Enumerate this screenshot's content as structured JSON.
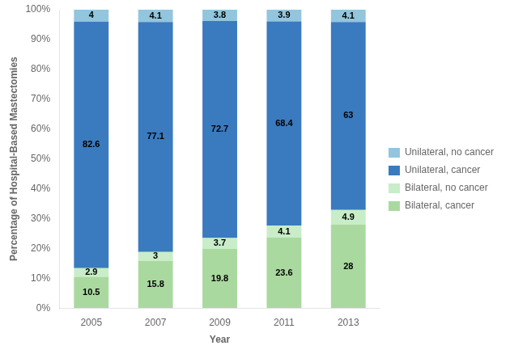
{
  "chart_data": {
    "type": "bar",
    "stacked": true,
    "xlabel": "Year",
    "ylabel": "Percentage of Hospital-Based Mastectomies",
    "categories": [
      "2005",
      "2007",
      "2009",
      "2011",
      "2013"
    ],
    "series": [
      {
        "name": "Bilateral, cancer",
        "color": "#aad9a0",
        "values": [
          10.5,
          15.8,
          19.8,
          23.6,
          28.0
        ]
      },
      {
        "name": "Bilateral, no cancer",
        "color": "#c8edc8",
        "values": [
          2.9,
          3.0,
          3.7,
          4.1,
          4.9
        ]
      },
      {
        "name": "Unilateral, cancer",
        "color": "#3a7abf",
        "values": [
          82.6,
          77.1,
          72.7,
          68.4,
          63.0
        ]
      },
      {
        "name": "Unilateral, no cancer",
        "color": "#92c5de",
        "values": [
          4.0,
          4.1,
          3.8,
          3.9,
          4.1
        ]
      }
    ],
    "ylim": [
      0,
      100
    ],
    "yticks": [
      {
        "value": 0,
        "label": "0%"
      },
      {
        "value": 10,
        "label": "10%"
      },
      {
        "value": 20,
        "label": "20%"
      },
      {
        "value": 30,
        "label": "30%"
      },
      {
        "value": 40,
        "label": "40%"
      },
      {
        "value": 50,
        "label": "50%"
      },
      {
        "value": 60,
        "label": "60%"
      },
      {
        "value": 70,
        "label": "70%"
      },
      {
        "value": 80,
        "label": "80%"
      },
      {
        "value": 90,
        "label": "90%"
      },
      {
        "value": 100,
        "label": "100%"
      }
    ],
    "grid": false,
    "legend": "right",
    "data_labels": true
  }
}
